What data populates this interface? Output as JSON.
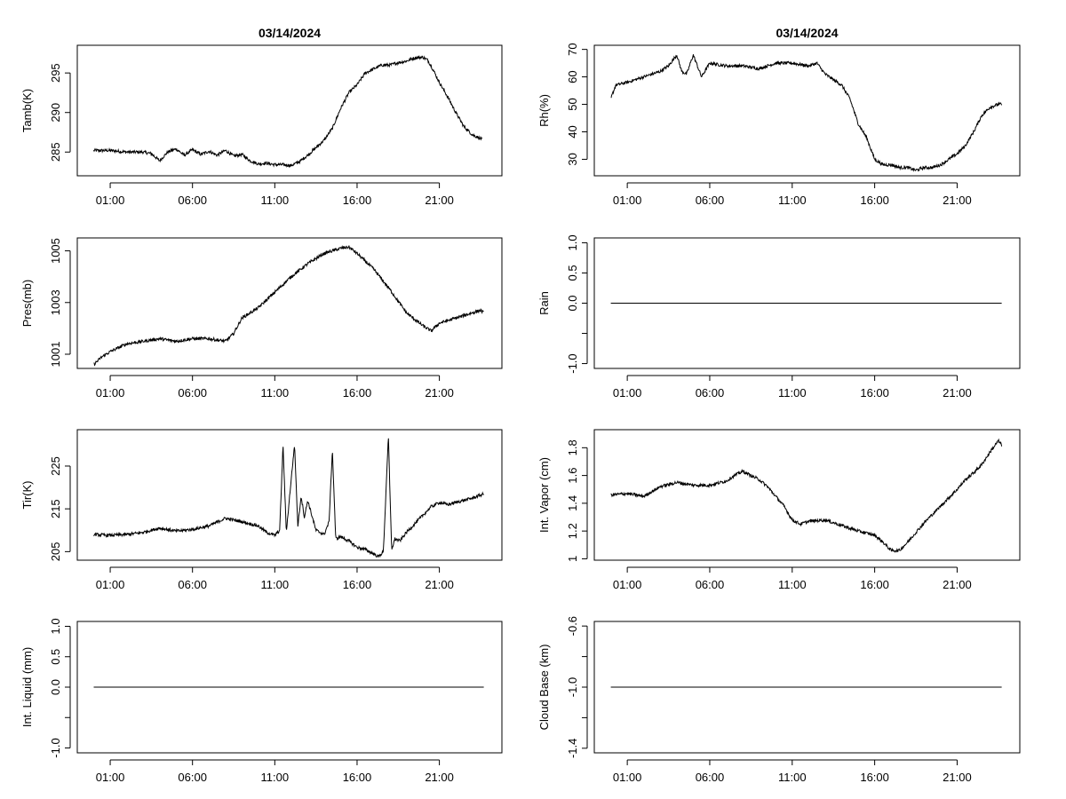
{
  "chart_data": [
    {
      "type": "line",
      "title": "03/14/2024",
      "ylabel": "Tamb(K)",
      "xlabel": "",
      "xlim": [
        -1.0,
        24.8
      ],
      "ylim": [
        282.0,
        298.5
      ],
      "yticks": [
        285,
        290,
        295
      ],
      "xticks": [
        1,
        6,
        11,
        16,
        21
      ],
      "xtick_labels": [
        "01:00",
        "06:00",
        "11:00",
        "16:00",
        "21:00"
      ],
      "series": [
        {
          "name": "Tamb",
          "x": [
            0,
            1,
            2,
            3,
            3.5,
            4,
            4.5,
            5,
            5.5,
            6,
            6.5,
            7,
            7.5,
            8,
            8.5,
            9,
            9.5,
            10,
            10.5,
            11,
            11.5,
            12,
            12.5,
            13,
            14,
            14.5,
            15,
            15.5,
            16,
            16.5,
            17,
            17.5,
            18,
            18.5,
            19,
            19.5,
            20,
            20.3,
            20.6,
            21,
            21.5,
            22,
            22.5,
            23,
            23.3,
            23.6
          ],
          "y": [
            285.2,
            285.2,
            285.0,
            285.0,
            284.8,
            283.9,
            285.0,
            285.4,
            284.6,
            285.3,
            284.7,
            285.1,
            284.6,
            285.2,
            284.5,
            284.7,
            283.9,
            283.5,
            283.6,
            283.4,
            283.4,
            283.3,
            283.8,
            284.6,
            286.5,
            288.0,
            290.5,
            292.5,
            293.5,
            295.0,
            295.5,
            296.0,
            296.0,
            296.3,
            296.5,
            296.9,
            297.0,
            296.6,
            295.5,
            293.8,
            292.0,
            290.0,
            288.2,
            287.2,
            286.9,
            286.6
          ]
        }
      ]
    },
    {
      "type": "line",
      "title": "03/14/2024",
      "ylabel": "Rh(%)",
      "xlabel": "",
      "xlim": [
        -1.0,
        24.8
      ],
      "ylim": [
        24.0,
        71.5
      ],
      "yticks": [
        30,
        40,
        50,
        60,
        70
      ],
      "xticks": [
        1,
        6,
        11,
        16,
        21
      ],
      "xtick_labels": [
        "01:00",
        "06:00",
        "11:00",
        "16:00",
        "21:00"
      ],
      "series": [
        {
          "name": "Rh",
          "x": [
            0,
            0.3,
            1,
            2,
            3,
            3.5,
            4,
            4.3,
            4.6,
            5,
            5.5,
            6,
            7,
            8,
            9,
            10,
            11,
            12,
            12.5,
            13,
            14,
            14.5,
            15,
            15.5,
            16,
            16.5,
            17,
            17.5,
            18,
            18.5,
            19,
            19.5,
            20,
            20.5,
            21,
            21.5,
            22,
            22.5,
            23,
            23.5,
            23.7
          ],
          "y": [
            52,
            57,
            58,
            60,
            62,
            64,
            68,
            62,
            61,
            68,
            60,
            65,
            64,
            64,
            63,
            65,
            65,
            64,
            65,
            61,
            57,
            52,
            43,
            38,
            30,
            28,
            28,
            27,
            27,
            26,
            27,
            27,
            28,
            30,
            32,
            35,
            40,
            46,
            49,
            50,
            50
          ]
        }
      ]
    },
    {
      "type": "line",
      "title": "",
      "ylabel": "Pres(mb)",
      "xlabel": "",
      "xlim": [
        -1.0,
        24.8
      ],
      "ylim": [
        1000.45,
        1005.5
      ],
      "yticks": [
        1001,
        1003,
        1005
      ],
      "xticks": [
        1,
        6,
        11,
        16,
        21
      ],
      "xtick_labels": [
        "01:00",
        "06:00",
        "11:00",
        "16:00",
        "21:00"
      ],
      "series": [
        {
          "name": "Pres",
          "x": [
            0,
            0.5,
            1,
            2,
            3,
            4,
            5,
            6,
            7,
            8,
            8.5,
            9,
            10,
            11,
            12,
            13,
            14,
            15,
            15.5,
            16,
            17,
            18,
            19,
            20,
            20.5,
            21,
            21.5,
            22,
            22.5,
            23,
            23.5,
            23.7
          ],
          "y": [
            1000.6,
            1000.9,
            1001.1,
            1001.4,
            1001.5,
            1001.6,
            1001.5,
            1001.6,
            1001.6,
            1001.5,
            1001.8,
            1002.4,
            1002.8,
            1003.4,
            1004.0,
            1004.5,
            1004.9,
            1005.1,
            1005.15,
            1004.9,
            1004.3,
            1003.5,
            1002.6,
            1002.1,
            1001.9,
            1002.2,
            1002.3,
            1002.4,
            1002.5,
            1002.6,
            1002.7,
            1002.6
          ]
        }
      ]
    },
    {
      "type": "line",
      "title": "",
      "ylabel": "Rain",
      "xlabel": "",
      "xlim": [
        -1.0,
        24.8
      ],
      "ylim": [
        -1.08,
        1.08
      ],
      "yticks": [
        -1.0,
        -0.5,
        0.0,
        0.5,
        1.0
      ],
      "ytick_labels": [
        "-1.0",
        "",
        "0.0",
        "0.5",
        "1.0"
      ],
      "xticks": [
        1,
        6,
        11,
        16,
        21
      ],
      "xtick_labels": [
        "01:00",
        "06:00",
        "11:00",
        "16:00",
        "21:00"
      ],
      "series": [
        {
          "name": "Rain",
          "x": [
            0,
            23.7
          ],
          "y": [
            0,
            0
          ]
        }
      ]
    },
    {
      "type": "line",
      "title": "",
      "ylabel": "Tir(K)",
      "xlabel": "",
      "xlim": [
        -1.0,
        24.8
      ],
      "ylim": [
        203.0,
        233.5
      ],
      "yticks": [
        205,
        215,
        225
      ],
      "xticks": [
        1,
        6,
        11,
        16,
        21
      ],
      "xtick_labels": [
        "01:00",
        "06:00",
        "11:00",
        "16:00",
        "21:00"
      ],
      "series": [
        {
          "name": "Tir",
          "x": [
            0,
            1,
            2,
            3,
            4,
            5,
            6,
            7,
            8,
            9,
            10,
            10.5,
            11,
            11.3,
            11.5,
            11.7,
            12,
            12.2,
            12.4,
            12.6,
            12.8,
            13,
            13.5,
            14,
            14.3,
            14.5,
            14.7,
            15,
            15.5,
            16,
            16.5,
            17,
            17.3,
            17.6,
            17.9,
            18.1,
            18.3,
            18.6,
            19,
            19.5,
            20,
            20.5,
            21,
            21.5,
            22,
            22.5,
            23,
            23.7
          ],
          "y": [
            209.0,
            208.8,
            209.0,
            209.5,
            210.5,
            209.8,
            210.2,
            211.0,
            212.8,
            212.0,
            211.0,
            209.5,
            208.8,
            210,
            230,
            209.5,
            222,
            230,
            211,
            218,
            213,
            217,
            210,
            209,
            212,
            229,
            208,
            208.5,
            207.5,
            206,
            205.5,
            204.5,
            203.8,
            205,
            232,
            205.5,
            208,
            207.5,
            209.5,
            211.5,
            213.5,
            215.5,
            216.5,
            216.0,
            216.5,
            217.0,
            217.5,
            218.5
          ]
        }
      ]
    },
    {
      "type": "line",
      "title": "",
      "ylabel": "Int. Vapor (cm)",
      "xlabel": "",
      "xlim": [
        -1.0,
        24.8
      ],
      "ylim": [
        0.99,
        1.93
      ],
      "yticks": [
        1.0,
        1.2,
        1.4,
        1.6,
        1.8
      ],
      "xticks": [
        1,
        6,
        11,
        16,
        21
      ],
      "xtick_labels": [
        "01:00",
        "06:00",
        "11:00",
        "16:00",
        "21:00"
      ],
      "series": [
        {
          "name": "Int. Vapor",
          "x": [
            0,
            1,
            2,
            3,
            4,
            5,
            6,
            7,
            7.5,
            8,
            9,
            9.5,
            10,
            10.5,
            11,
            11.5,
            12,
            13,
            14,
            15,
            16,
            16.5,
            17,
            17.5,
            18,
            19,
            20,
            21,
            21.5,
            22,
            22.5,
            23,
            23.5,
            23.7
          ],
          "y": [
            1.46,
            1.47,
            1.45,
            1.52,
            1.55,
            1.53,
            1.53,
            1.56,
            1.6,
            1.63,
            1.57,
            1.52,
            1.45,
            1.38,
            1.28,
            1.25,
            1.27,
            1.28,
            1.24,
            1.2,
            1.17,
            1.12,
            1.06,
            1.06,
            1.12,
            1.26,
            1.38,
            1.5,
            1.57,
            1.62,
            1.68,
            1.77,
            1.85,
            1.82
          ]
        }
      ]
    },
    {
      "type": "line",
      "title": "",
      "ylabel": "Int. Liquid (mm)",
      "xlabel": "",
      "xlim": [
        -1.0,
        24.8
      ],
      "ylim": [
        -1.08,
        1.08
      ],
      "yticks": [
        -1.0,
        -0.5,
        0.0,
        0.5,
        1.0
      ],
      "ytick_labels": [
        "-1.0",
        "",
        "0.0",
        "0.5",
        "1.0"
      ],
      "xticks": [
        1,
        6,
        11,
        16,
        21
      ],
      "xtick_labels": [
        "01:00",
        "06:00",
        "11:00",
        "16:00",
        "21:00"
      ],
      "series": [
        {
          "name": "Int. Liquid",
          "x": [
            0,
            23.7
          ],
          "y": [
            0,
            0
          ]
        }
      ]
    },
    {
      "type": "line",
      "title": "",
      "ylabel": "Cloud Base (km)",
      "xlabel": "",
      "xlim": [
        -1.0,
        24.8
      ],
      "ylim": [
        -1.43,
        -0.57
      ],
      "yticks": [
        -1.4,
        -1.2,
        -1.0,
        -0.8,
        -0.6
      ],
      "ytick_labels": [
        "-1.4",
        "",
        "-1.0",
        "",
        "-0.6"
      ],
      "xticks": [
        1,
        6,
        11,
        16,
        21
      ],
      "xtick_labels": [
        "01:00",
        "06:00",
        "11:00",
        "16:00",
        "21:00"
      ],
      "series": [
        {
          "name": "Cloud Base",
          "x": [
            0,
            23.7
          ],
          "y": [
            -1.0,
            -1.0
          ]
        }
      ]
    }
  ]
}
